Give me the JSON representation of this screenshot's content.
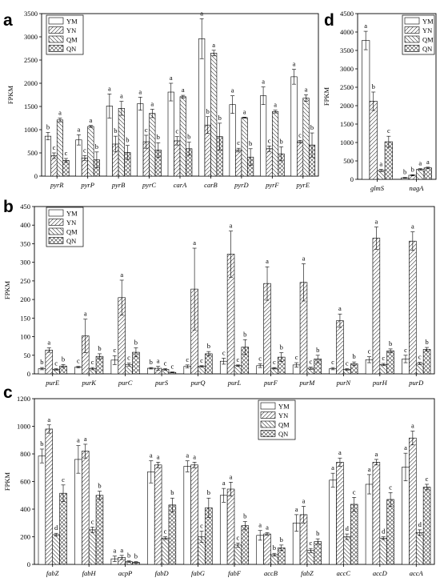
{
  "chart_data": [
    {
      "panel": "a",
      "type": "bar",
      "ylabel": "FPKM",
      "ylim": [
        0,
        3500
      ],
      "yticks": [
        0,
        500,
        1000,
        1500,
        2000,
        2500,
        3000,
        3500
      ],
      "legend": "top-left",
      "categories": [
        "pyrR",
        "pyrP",
        "pyrB",
        "pyrC",
        "carA",
        "carB",
        "pyrD",
        "pyrF",
        "pyrE"
      ],
      "series": [
        {
          "name": "YM",
          "values": [
            860,
            780,
            1510,
            1560,
            1810,
            2960,
            1540,
            1730,
            2140
          ],
          "errors": [
            80,
            110,
            260,
            140,
            190,
            430,
            190,
            190,
            160
          ],
          "sig": [
            "b",
            "a",
            "a",
            "a",
            "a",
            "a",
            "a",
            "a",
            "a"
          ]
        },
        {
          "name": "YN",
          "values": [
            440,
            390,
            690,
            740,
            760,
            1100,
            560,
            590,
            740
          ],
          "errors": [
            60,
            50,
            170,
            140,
            90,
            180,
            40,
            60,
            30
          ],
          "sig": [
            "c",
            "c",
            "b",
            "c",
            "c",
            "b",
            "c",
            "c",
            "c"
          ]
        },
        {
          "name": "QM",
          "values": [
            1210,
            1070,
            1460,
            1350,
            1710,
            2650,
            1260,
            1390,
            1680
          ],
          "errors": [
            40,
            20,
            150,
            90,
            30,
            60,
            10,
            30,
            70
          ],
          "sig": [
            "a",
            "a",
            "a",
            "a",
            "a",
            "a",
            "a",
            "a",
            "a"
          ]
        },
        {
          "name": "QN",
          "values": [
            340,
            350,
            510,
            560,
            590,
            850,
            410,
            480,
            670
          ],
          "errors": [
            40,
            170,
            150,
            160,
            140,
            290,
            180,
            150,
            260
          ],
          "sig": [
            "c",
            "b",
            "b",
            "b",
            "b",
            "b",
            "b",
            "b",
            "b"
          ]
        }
      ]
    },
    {
      "panel": "b",
      "type": "bar",
      "ylabel": "FPKM",
      "ylim": [
        0,
        450
      ],
      "yticks": [
        0,
        50,
        100,
        150,
        200,
        250,
        300,
        350,
        400,
        450
      ],
      "legend": "top-left",
      "categories": [
        "purE",
        "purK",
        "purC",
        "purS",
        "purQ",
        "purL",
        "purF",
        "purM",
        "purN",
        "purH",
        "purD"
      ],
      "series": [
        {
          "name": "YM",
          "values": [
            14,
            18,
            37,
            15,
            20,
            34,
            22,
            24,
            14,
            38,
            40
          ],
          "errors": [
            3,
            2,
            12,
            2,
            4,
            8,
            5,
            6,
            3,
            8,
            10
          ],
          "sig": [
            "b",
            "c",
            "c",
            "b",
            "c",
            "c",
            "c",
            "c",
            "c",
            "c",
            "c"
          ]
        },
        {
          "name": "YN",
          "values": [
            64,
            102,
            205,
            15,
            228,
            322,
            243,
            246,
            143,
            365,
            357
          ],
          "errors": [
            6,
            45,
            47,
            5,
            110,
            62,
            45,
            50,
            18,
            30,
            25
          ],
          "sig": [
            "a",
            "a",
            "a",
            "a",
            "a",
            "a",
            "a",
            "a",
            "a",
            "a",
            "a"
          ]
        },
        {
          "name": "QM",
          "values": [
            12,
            14,
            25,
            12,
            20,
            22,
            15,
            15,
            12,
            25,
            28
          ],
          "errors": [
            2,
            3,
            4,
            2,
            2,
            2,
            2,
            3,
            2,
            3,
            3
          ],
          "sig": [
            "c",
            "c",
            "c",
            "c",
            "c",
            "c",
            "c",
            "c",
            "c",
            "c",
            "c"
          ]
        },
        {
          "name": "QN",
          "values": [
            21,
            47,
            58,
            4,
            54,
            72,
            45,
            40,
            27,
            62,
            66
          ],
          "errors": [
            4,
            7,
            12,
            1,
            6,
            20,
            12,
            10,
            5,
            5,
            5
          ],
          "sig": [
            "b",
            "b",
            "b",
            "c",
            "b",
            "b",
            "b",
            "b",
            "b",
            "b",
            "b"
          ]
        }
      ]
    },
    {
      "panel": "c",
      "type": "bar",
      "ylabel": "FPKM",
      "ylim": [
        0,
        1200
      ],
      "yticks": [
        0,
        200,
        400,
        600,
        800,
        1000,
        1200
      ],
      "legend": "top-right",
      "categories": [
        "fabZ",
        "fabH",
        "acpP",
        "fabD",
        "fabG",
        "fabF",
        "accB",
        "fabZ",
        "accC",
        "accD",
        "accA"
      ],
      "series": [
        {
          "name": "YM",
          "values": [
            785,
            760,
            40,
            670,
            710,
            500,
            210,
            300,
            610,
            580,
            705
          ],
          "errors": [
            50,
            100,
            20,
            80,
            40,
            50,
            35,
            60,
            50,
            70,
            100
          ],
          "sig": [
            "b",
            "a",
            "a",
            "a",
            "a",
            "a",
            "a",
            "a",
            "a",
            "a",
            "a"
          ]
        },
        {
          "name": "YN",
          "values": [
            980,
            820,
            50,
            720,
            720,
            545,
            220,
            360,
            740,
            740,
            915
          ],
          "errors": [
            30,
            50,
            15,
            20,
            20,
            50,
            10,
            60,
            30,
            20,
            50
          ],
          "sig": [
            "a",
            "a",
            "a",
            "a",
            "a",
            "a",
            "a",
            "a",
            "a",
            "a",
            "a"
          ]
        },
        {
          "name": "QM",
          "values": [
            215,
            250,
            20,
            190,
            200,
            140,
            70,
            100,
            200,
            190,
            230
          ],
          "errors": [
            10,
            20,
            5,
            10,
            40,
            15,
            10,
            15,
            20,
            10,
            20
          ],
          "sig": [
            "d",
            "c",
            "b",
            "c",
            "c",
            "c",
            "b",
            "c",
            "d",
            "d",
            "d"
          ]
        },
        {
          "name": "QN",
          "values": [
            515,
            500,
            15,
            430,
            410,
            280,
            120,
            165,
            435,
            470,
            560
          ],
          "errors": [
            60,
            30,
            5,
            50,
            70,
            30,
            20,
            20,
            50,
            50,
            20
          ],
          "sig": [
            "c",
            "b",
            "b",
            "b",
            "b",
            "b",
            "b",
            "b",
            "c",
            "c",
            "c"
          ]
        }
      ]
    },
    {
      "panel": "d",
      "type": "bar",
      "ylabel": "FPKM",
      "ylim": [
        0,
        4500
      ],
      "yticks": [
        0,
        500,
        1000,
        1500,
        2000,
        2500,
        3000,
        3500,
        4000,
        4500
      ],
      "legend": "top-right",
      "categories": [
        "glmS",
        "nagA"
      ],
      "series": [
        {
          "name": "YM",
          "values": [
            3770,
            40
          ],
          "errors": [
            250,
            10
          ],
          "sig": [
            "a",
            "b"
          ]
        },
        {
          "name": "YN",
          "values": [
            2120,
            110
          ],
          "errors": [
            250,
            15
          ],
          "sig": [
            "b",
            "b"
          ]
        },
        {
          "name": "QM",
          "values": [
            240,
            270
          ],
          "errors": [
            30,
            20
          ],
          "sig": [
            "a",
            "a"
          ]
        },
        {
          "name": "QN",
          "values": [
            1020,
            310
          ],
          "errors": [
            150,
            20
          ],
          "sig": [
            "c",
            "a"
          ]
        }
      ]
    }
  ]
}
